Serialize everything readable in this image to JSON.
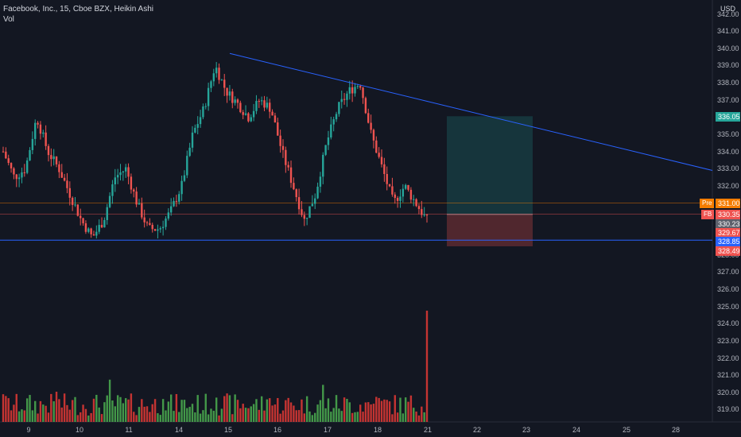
{
  "legend": {
    "symbol_line": "Facebook, Inc., 15, Cboe BZX, Heikin Ashi",
    "volume_label": "Vol"
  },
  "price_axis": {
    "currency": "USD",
    "labels": [
      "342.00",
      "341.00",
      "340.00",
      "339.00",
      "338.00",
      "337.00",
      "336.00",
      "335.00",
      "334.00",
      "333.00",
      "332.00",
      "331.00",
      "330.00",
      "329.00",
      "328.00",
      "327.00",
      "326.00",
      "325.00",
      "324.00",
      "323.00",
      "322.00",
      "321.00",
      "320.00",
      "319.00"
    ]
  },
  "time_axis": {
    "labels": [
      "9",
      "10",
      "11",
      "14",
      "15",
      "16",
      "17",
      "18",
      "21",
      "22",
      "23",
      "24",
      "25",
      "28"
    ]
  },
  "tags": {
    "pre": {
      "name": "Pre",
      "value": "331.00",
      "color": "#f57c00"
    },
    "fb": {
      "name": "FB",
      "value": "330.35",
      "color": "#ef5350"
    },
    "gray": {
      "value": "330.23",
      "color": "#5d606b"
    },
    "red1": {
      "value": "329.67",
      "color": "#ef5350"
    },
    "blue": {
      "value": "328.85",
      "color": "#2962ff"
    },
    "red2": {
      "value": "328.49",
      "color": "#ef5350"
    },
    "target": {
      "value": "336.05",
      "color": "#26a69a"
    }
  },
  "colors": {
    "up": "#26a69a",
    "down": "#ef5350",
    "trend": "#2962ff",
    "up_vol": "#4caf50",
    "down_vol": "#e53935"
  },
  "chart_data": {
    "type": "candlestick",
    "style": "Heikin Ashi",
    "interval": "15",
    "title": "Facebook, Inc., 15, Cboe BZX, Heikin Ashi",
    "y_range": [
      318.5,
      342.5
    ],
    "x_labels": [
      "9",
      "10",
      "11",
      "14",
      "15",
      "16",
      "17",
      "18",
      "21",
      "22",
      "23",
      "24",
      "25",
      "28"
    ],
    "price_waypoints": [
      334,
      332.5,
      333,
      336,
      334,
      333,
      331.5,
      330,
      329,
      330,
      332.5,
      333,
      331,
      329.5,
      329.5,
      330.5,
      332,
      335,
      336.5,
      339,
      337.5,
      336.8,
      336,
      337,
      336.5,
      334,
      332,
      330,
      331.5,
      334.5,
      336.5,
      337.5,
      338,
      335,
      333,
      331,
      332,
      331,
      330
    ],
    "trend_line": {
      "from": {
        "date": "15",
        "price": 339.7
      },
      "to": {
        "date": "28+",
        "price": 332.9
      }
    },
    "support_line": 328.85,
    "position": {
      "entry": 330.35,
      "target": 336.05,
      "stop": 328.49
    }
  }
}
